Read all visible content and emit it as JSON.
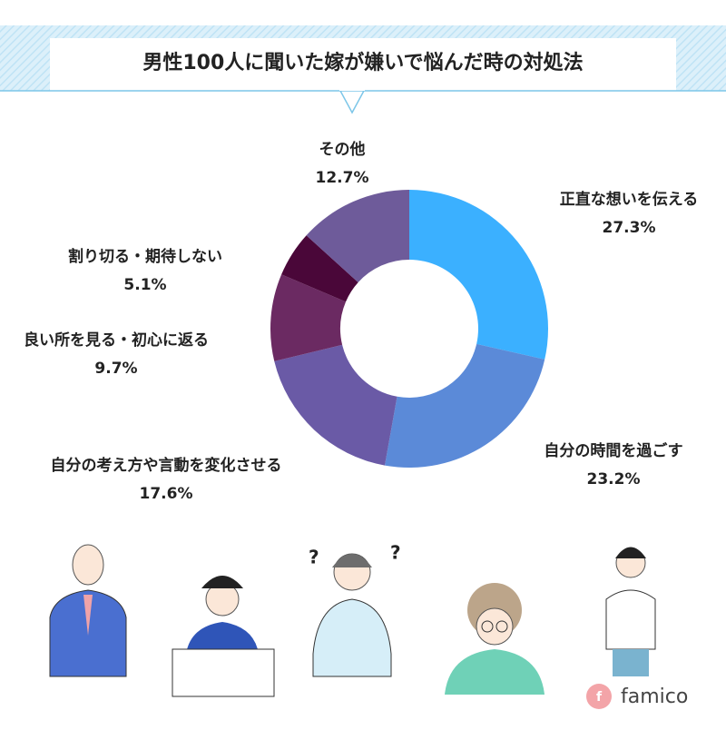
{
  "chart_data": {
    "type": "donut",
    "title": "男性100人に聞いた嫁が嫌いで悩んだ時の対処法",
    "categories": [
      "正直な想いを伝える",
      "自分の時間を過ごす",
      "自分の考え方や言動を変化させる",
      "良い所を見る・初心に返る",
      "割り切る・期待しない",
      "その他"
    ],
    "values": [
      27.3,
      23.2,
      17.6,
      9.7,
      5.1,
      12.7
    ],
    "value_labels": [
      "27.3%",
      "23.2%",
      "17.6%",
      "9.7%",
      "5.1%",
      "12.7%"
    ],
    "colors": [
      "#3bb0ff",
      "#5b8ad8",
      "#6a5aa6",
      "#6b2a62",
      "#4a0739",
      "#6e5b9a"
    ]
  },
  "brand": "famico"
}
